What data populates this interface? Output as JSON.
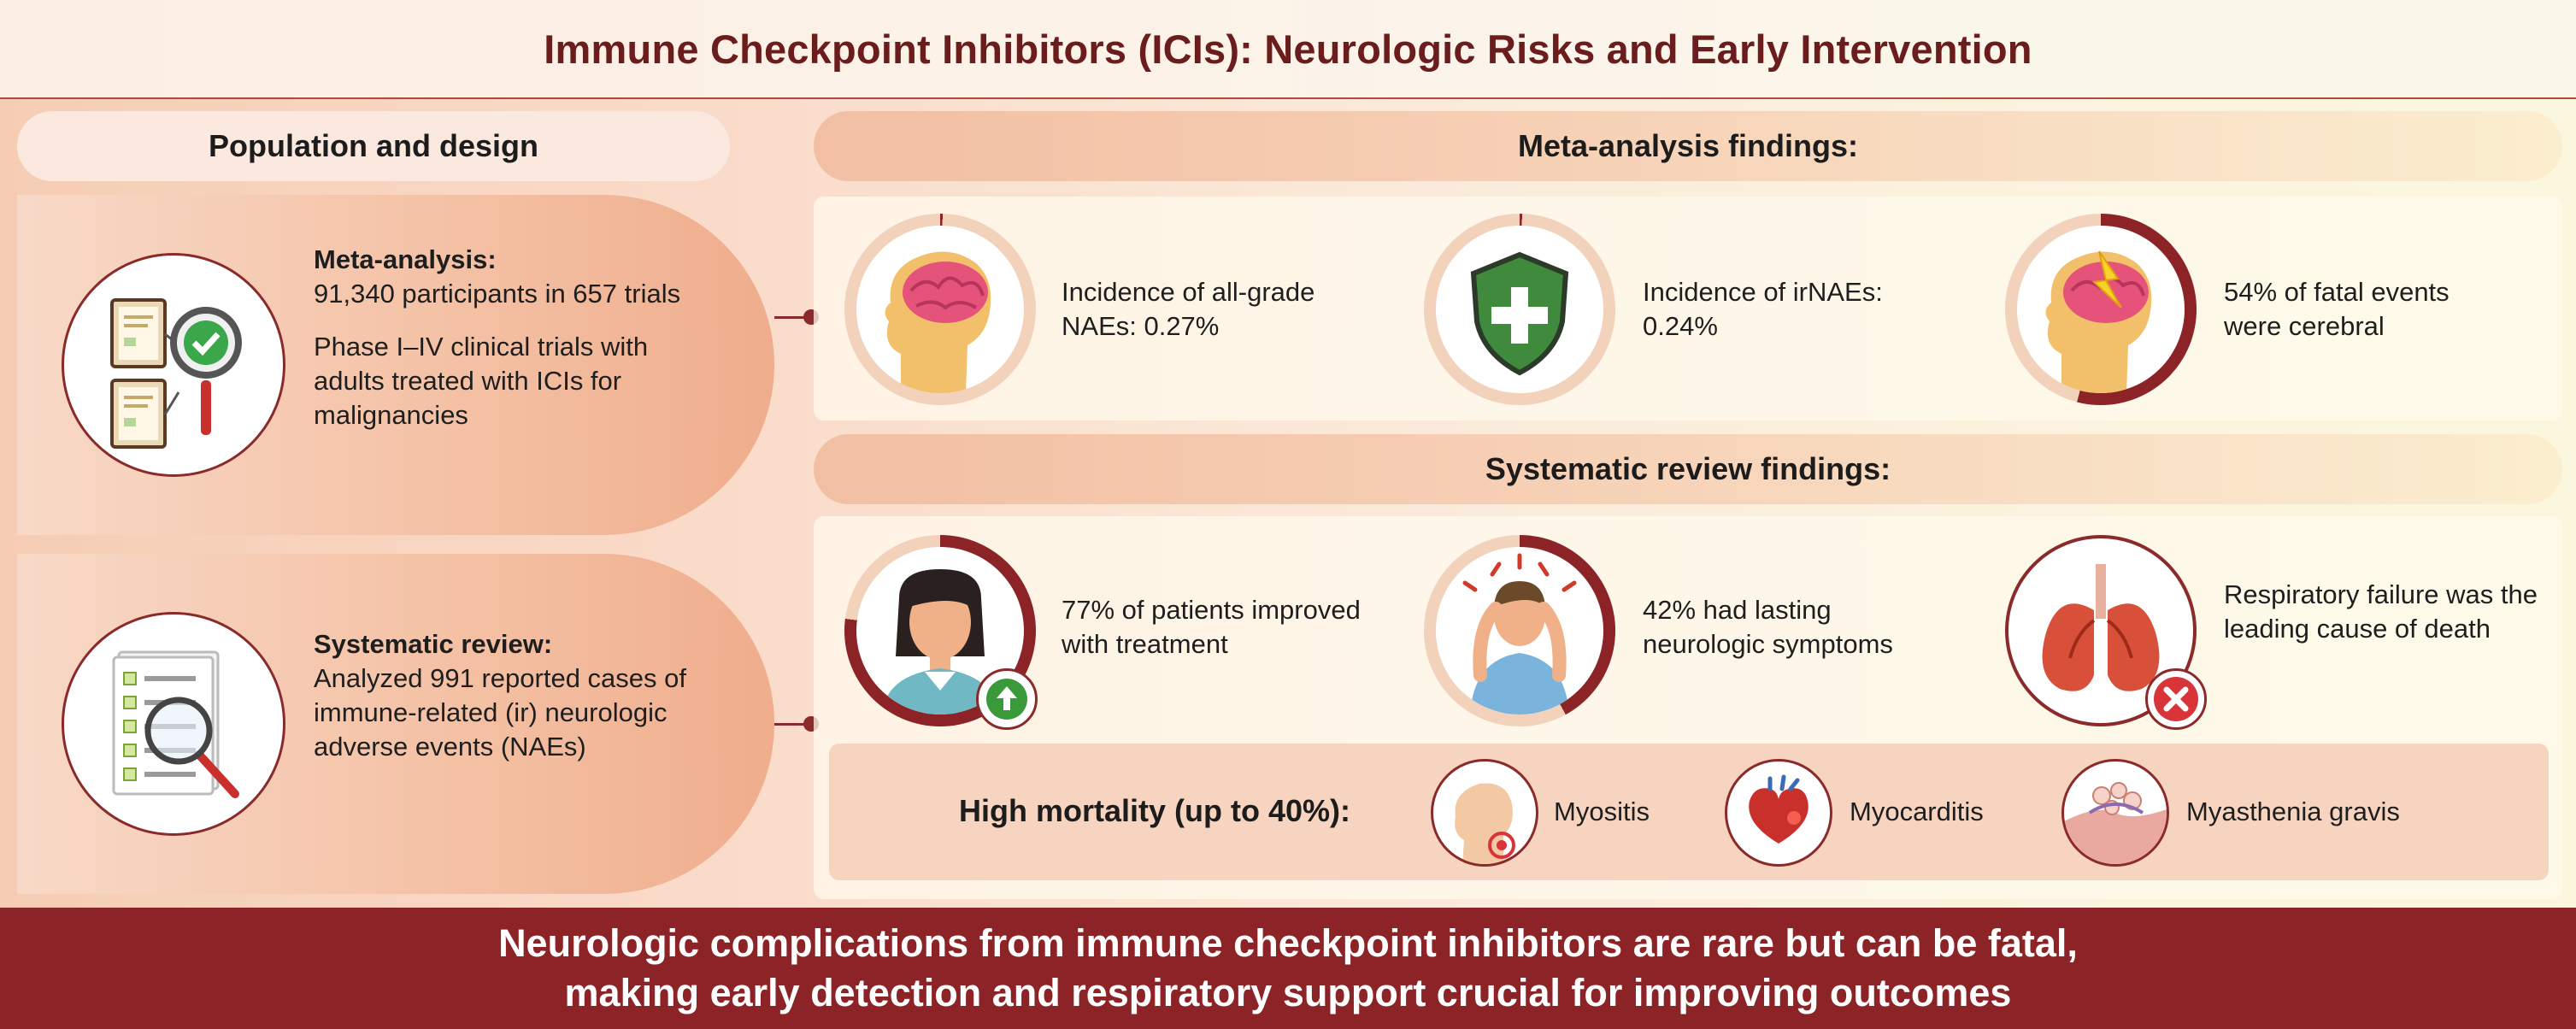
{
  "title": "Immune Checkpoint Inhibitors (ICIs): Neurologic Risks and Early Intervention",
  "population": {
    "header": "Population and design",
    "meta": {
      "heading": "Meta-analysis:",
      "line1": "91,340 participants in 657 trials",
      "line2": "Phase I–IV clinical trials with adults treated with ICIs for malignancies"
    },
    "systematic": {
      "heading": "Systematic review:",
      "line1": "Analyzed 991 reported cases of immune-related (ir) neurologic adverse events (NAEs)"
    }
  },
  "meta_findings": {
    "header": "Meta-analysis findings:",
    "items": [
      {
        "text": "Incidence of all-grade NAEs: 0.27%",
        "ring_fraction": 0.0027
      },
      {
        "text": "Incidence of irNAEs: 0.24%",
        "ring_fraction": 0.0024
      },
      {
        "text": "54% of fatal events were cerebral",
        "ring_fraction": 0.54
      }
    ]
  },
  "systematic_findings": {
    "header": "Systematic review findings:",
    "items": [
      {
        "text": "77% of patients improved with treatment",
        "ring_fraction": 0.77
      },
      {
        "text": "42% had lasting neurologic symptoms",
        "ring_fraction": 0.42
      },
      {
        "text": "Respiratory failure was the leading cause of death"
      }
    ]
  },
  "mortality": {
    "label": "High mortality (up to 40%):",
    "items": [
      "Myositis",
      "Myocarditis",
      "Myasthenia gravis"
    ]
  },
  "footer": {
    "line1": "Neurologic complications from immune checkpoint inhibitors are rare but can be fatal,",
    "line2": "making early detection and respiratory support crucial for improving outcomes"
  },
  "colors": {
    "dark_red": "#8c2326",
    "ring_track": "#f3d2bc",
    "accent_green": "#3a8a3a"
  },
  "icons": {
    "meta": "clipboards-magnifier-check-icon",
    "systematic": "checklist-magnifier-icon",
    "brain1": "head-brain-icon",
    "shield": "shield-plus-icon",
    "brain2": "head-brain-lightning-icon",
    "patient": "woman-patient-improve-icon",
    "headache": "man-headache-icon",
    "lungs": "lungs-cross-icon",
    "myositis": "neck-muscle-icon",
    "myocarditis": "heart-icon",
    "myasthenia": "neuromuscular-junction-icon"
  }
}
